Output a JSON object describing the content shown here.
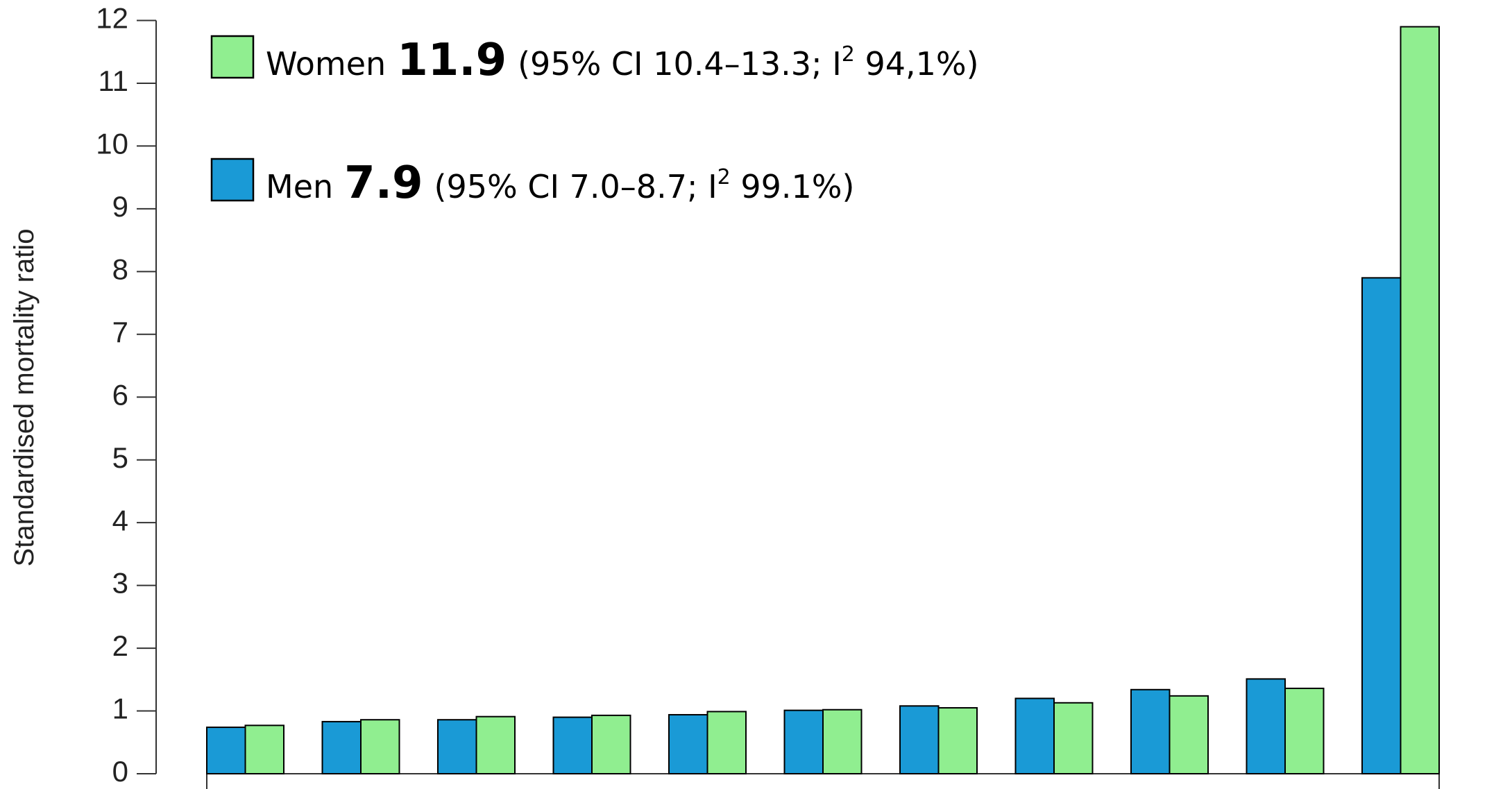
{
  "chart_data": {
    "type": "bar",
    "ylabel": "Standardised mortality ratio",
    "categories": [
      null,
      null,
      null,
      null,
      null,
      null,
      null,
      null,
      null,
      null,
      null
    ],
    "series": [
      {
        "name": "Men",
        "color": "#1a9ad6",
        "values": [
          0.74,
          0.83,
          0.86,
          0.9,
          0.94,
          1.01,
          1.08,
          1.2,
          1.34,
          1.51,
          7.9
        ]
      },
      {
        "name": "Women",
        "color": "#90ee90",
        "values": [
          0.77,
          0.86,
          0.91,
          0.93,
          0.99,
          1.02,
          1.05,
          1.13,
          1.24,
          1.36,
          11.9
        ]
      }
    ],
    "legend_notes": [
      {
        "ci": "(95% CI 7.0–8.7; I",
        "sup": "2",
        "rest": " 99.1%)"
      },
      {
        "ci": "(95% CI 10.4–13.3; I",
        "sup": "2",
        "rest": " 94,1%)"
      }
    ],
    "ylim": [
      0,
      12
    ],
    "yticks": [
      0,
      1,
      2,
      3,
      4,
      5,
      6,
      7,
      8,
      9,
      10,
      11,
      12
    ],
    "legend": "upper left"
  }
}
